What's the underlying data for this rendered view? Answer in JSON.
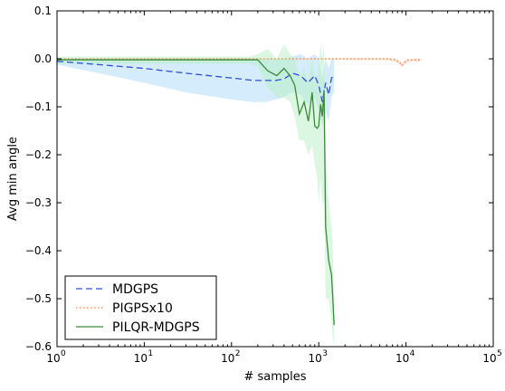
{
  "chart_data": {
    "type": "line",
    "title": "",
    "xlabel": "# samples",
    "ylabel": "Avg min angle",
    "xscale": "log",
    "xlim": [
      1,
      100000
    ],
    "ylim": [
      -0.6,
      0.1
    ],
    "grid": false,
    "legend_position": "lower-left",
    "x_ticks": [
      {
        "value": 1,
        "base": "10",
        "exp": "0"
      },
      {
        "value": 10,
        "base": "10",
        "exp": "1"
      },
      {
        "value": 100,
        "base": "10",
        "exp": "2"
      },
      {
        "value": 1000,
        "base": "10",
        "exp": "3"
      },
      {
        "value": 10000,
        "base": "10",
        "exp": "4"
      },
      {
        "value": 100000,
        "base": "10",
        "exp": "5"
      }
    ],
    "y_ticks": [
      {
        "value": 0.1,
        "label": "0.1"
      },
      {
        "value": 0.0,
        "label": "0.0"
      },
      {
        "value": -0.1,
        "label": "−0.1"
      },
      {
        "value": -0.2,
        "label": "−0.2"
      },
      {
        "value": -0.3,
        "label": "−0.3"
      },
      {
        "value": -0.4,
        "label": "−0.4"
      },
      {
        "value": -0.5,
        "label": "−0.5"
      },
      {
        "value": -0.6,
        "label": "−0.6"
      }
    ],
    "series": [
      {
        "name": "MDGPS",
        "color": "#2c4fd8",
        "style": "dashed",
        "band_color": "#9fd4f7",
        "band_opacity": 0.45,
        "x": [
          1,
          3,
          10,
          30,
          100,
          180,
          250,
          320,
          400,
          500,
          620,
          750,
          900,
          1000,
          1100,
          1200,
          1300,
          1400,
          1500
        ],
        "y": [
          -0.005,
          -0.012,
          -0.02,
          -0.03,
          -0.04,
          -0.045,
          -0.045,
          -0.045,
          -0.042,
          -0.03,
          -0.035,
          -0.05,
          -0.035,
          -0.055,
          -0.09,
          -0.05,
          -0.075,
          -0.04,
          -0.035
        ],
        "lower": [
          -0.012,
          -0.03,
          -0.05,
          -0.07,
          -0.085,
          -0.09,
          -0.09,
          -0.085,
          -0.08,
          -0.07,
          -0.075,
          -0.095,
          -0.08,
          -0.11,
          -0.14,
          -0.11,
          -0.13,
          -0.08,
          -0.07
        ],
        "upper": [
          0.0,
          0.0,
          0.0,
          0.0,
          0.0,
          0.0,
          0.0,
          0.0,
          0.0,
          0.005,
          0.01,
          0.0,
          0.01,
          0.0,
          -0.04,
          0.0,
          -0.02,
          0.0,
          0.0
        ]
      },
      {
        "name": "PIGPSx10",
        "color": "#ff7f40",
        "style": "dotted",
        "band_color": "#ffd0b0",
        "band_opacity": 0.5,
        "x": [
          1,
          10,
          100,
          1000,
          3000,
          6000,
          7500,
          8500,
          9000,
          9500,
          10500,
          12000,
          15000
        ],
        "y": [
          0.0,
          0.0,
          0.0,
          0.0,
          0.0,
          0.0,
          -0.002,
          -0.008,
          -0.014,
          -0.008,
          -0.003,
          -0.002,
          -0.002
        ],
        "lower": [
          -0.002,
          -0.002,
          -0.002,
          -0.002,
          -0.003,
          -0.003,
          -0.006,
          -0.012,
          -0.018,
          -0.012,
          -0.007,
          -0.005,
          -0.005
        ],
        "upper": [
          0.001,
          0.001,
          0.001,
          0.001,
          0.002,
          0.002,
          0.001,
          -0.004,
          -0.01,
          -0.004,
          0.0,
          0.0,
          0.0
        ]
      },
      {
        "name": "PILQR-MDGPS",
        "color": "#3a8a3a",
        "style": "solid",
        "band_color": "#b8f0c4",
        "band_opacity": 0.5,
        "x": [
          1,
          30,
          100,
          160,
          200,
          260,
          330,
          400,
          470,
          530,
          600,
          680,
          760,
          840,
          900,
          960,
          1000,
          1050,
          1100,
          1150,
          1200,
          1300,
          1400,
          1450,
          1500
        ],
        "y": [
          -0.002,
          -0.002,
          -0.002,
          -0.002,
          -0.002,
          -0.025,
          -0.035,
          -0.02,
          -0.035,
          -0.055,
          -0.115,
          -0.09,
          -0.13,
          -0.07,
          -0.14,
          -0.145,
          -0.14,
          -0.095,
          -0.12,
          -0.065,
          -0.35,
          -0.42,
          -0.45,
          -0.5,
          -0.555
        ],
        "lower": [
          -0.01,
          -0.01,
          -0.01,
          -0.01,
          -0.015,
          -0.06,
          -0.08,
          -0.08,
          -0.09,
          -0.12,
          -0.17,
          -0.17,
          -0.2,
          -0.18,
          -0.22,
          -0.25,
          -0.3,
          -0.25,
          -0.3,
          -0.3,
          -0.5,
          -0.5,
          -0.55,
          -0.58,
          -0.6
        ],
        "upper": [
          0.005,
          0.005,
          0.005,
          0.005,
          0.01,
          0.02,
          0.0,
          0.03,
          0.01,
          0.0,
          -0.04,
          -0.02,
          -0.05,
          0.0,
          -0.05,
          -0.04,
          -0.01,
          0.03,
          0.0,
          0.03,
          -0.2,
          -0.3,
          -0.35,
          -0.4,
          -0.5
        ]
      }
    ]
  }
}
